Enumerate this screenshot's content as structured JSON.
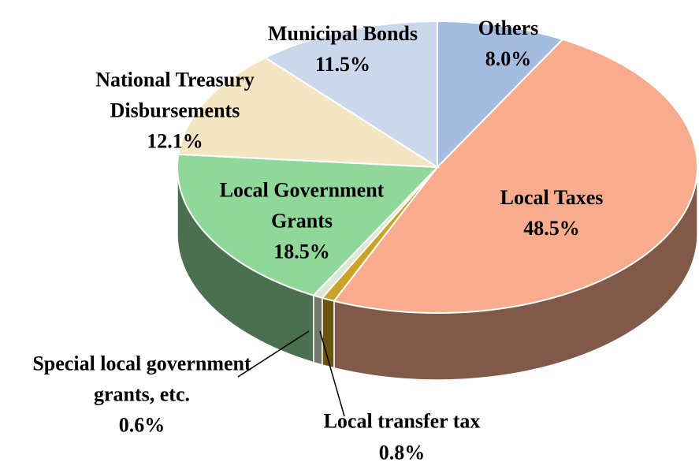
{
  "chart_data": {
    "type": "pie3d",
    "categories": [
      "Others",
      "Local Taxes",
      "Local transfer tax",
      "Special local government grants, etc.",
      "Local Government Grants",
      "National Treasury Disbursements",
      "Municipal Bonds"
    ],
    "values": [
      8.0,
      48.5,
      0.8,
      0.6,
      18.5,
      12.1,
      11.5
    ],
    "value_labels": [
      "8.0%",
      "48.5%",
      "0.8%",
      "0.6%",
      "18.5%",
      "12.1%",
      "11.5%"
    ],
    "colors": [
      "#a3bce0",
      "#f9ab8d",
      "#c9a227",
      "#dbe9d3",
      "#8fd89a",
      "#f5e6c3",
      "#cbd8ec"
    ]
  }
}
